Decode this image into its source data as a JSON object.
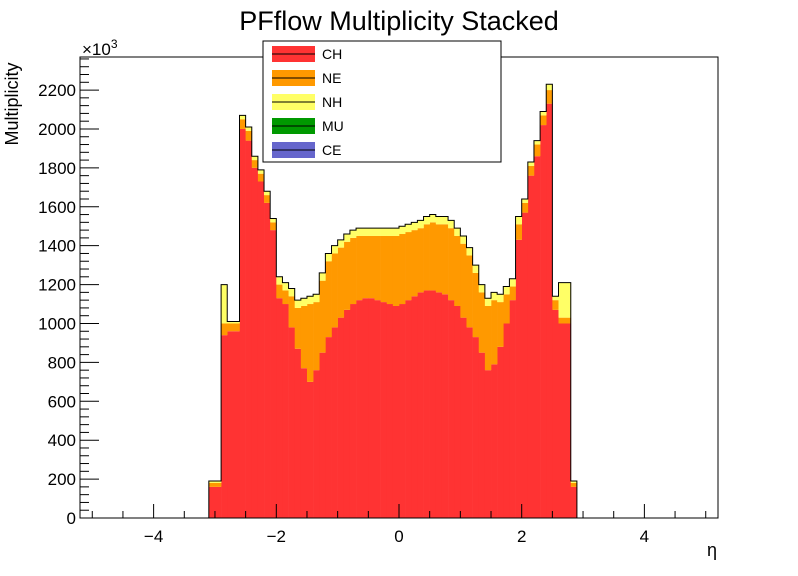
{
  "chart_data": {
    "type": "bar",
    "stacked": true,
    "title": "PFflow Multiplicity Stacked",
    "xlabel": "η",
    "ylabel": "Multiplicity",
    "y_exponent_label": "×10",
    "y_exponent_value": "3",
    "xlim": [
      -5.2,
      5.2
    ],
    "ylim": [
      0,
      2370
    ],
    "x_ticks": [
      {
        "value": -4,
        "label": "−4"
      },
      {
        "value": -2,
        "label": "−2"
      },
      {
        "value": 0,
        "label": "0"
      },
      {
        "value": 2,
        "label": "2"
      },
      {
        "value": 4,
        "label": "4"
      }
    ],
    "y_ticks": [
      {
        "value": 0,
        "label": "0"
      },
      {
        "value": 200,
        "label": "200"
      },
      {
        "value": 400,
        "label": "400"
      },
      {
        "value": 600,
        "label": "600"
      },
      {
        "value": 800,
        "label": "800"
      },
      {
        "value": 1000,
        "label": "1000"
      },
      {
        "value": 1200,
        "label": "1200"
      },
      {
        "value": 1400,
        "label": "1400"
      },
      {
        "value": 1600,
        "label": "1600"
      },
      {
        "value": 1800,
        "label": "1800"
      },
      {
        "value": 2000,
        "label": "2000"
      },
      {
        "value": 2200,
        "label": "2200"
      }
    ],
    "legend_position": "top-center",
    "bin_edges": [
      -3.1,
      -2.9,
      -2.8,
      -2.6,
      -2.5,
      -2.4,
      -2.3,
      -2.2,
      -2.1,
      -2.0,
      -1.9,
      -1.8,
      -1.7,
      -1.6,
      -1.5,
      -1.4,
      -1.3,
      -1.2,
      -1.1,
      -1.0,
      -0.9,
      -0.8,
      -0.7,
      -0.6,
      -0.5,
      -0.4,
      -0.3,
      -0.2,
      -0.1,
      0.0,
      0.1,
      0.2,
      0.3,
      0.4,
      0.5,
      0.6,
      0.7,
      0.8,
      0.9,
      1.0,
      1.1,
      1.2,
      1.3,
      1.4,
      1.5,
      1.6,
      1.7,
      1.8,
      1.9,
      2.0,
      2.1,
      2.2,
      2.3,
      2.4,
      2.5,
      2.6,
      2.8,
      2.9,
      3.1
    ],
    "series": [
      {
        "name": "CH",
        "color": "#ff3333",
        "values": [
          160,
          940,
          960,
          2000,
          1940,
          1800,
          1730,
          1620,
          1480,
          1130,
          1100,
          980,
          870,
          770,
          700,
          760,
          850,
          930,
          980,
          1030,
          1070,
          1100,
          1120,
          1130,
          1130,
          1120,
          1110,
          1100,
          1090,
          1100,
          1120,
          1140,
          1160,
          1170,
          1170,
          1160,
          1150,
          1120,
          1090,
          1030,
          980,
          930,
          850,
          760,
          790,
          880,
          1000,
          1120,
          1430,
          1570,
          1760,
          1860,
          2020,
          2130,
          1070,
          1000,
          160
        ]
      },
      {
        "name": "NE",
        "color": "#ff9900",
        "values": [
          20,
          60,
          40,
          50,
          50,
          40,
          40,
          40,
          40,
          70,
          70,
          160,
          210,
          320,
          400,
          350,
          370,
          390,
          380,
          360,
          350,
          340,
          330,
          320,
          320,
          330,
          340,
          350,
          360,
          360,
          350,
          340,
          330,
          340,
          350,
          350,
          360,
          370,
          360,
          380,
          370,
          330,
          310,
          330,
          330,
          230,
          150,
          70,
          80,
          50,
          50,
          60,
          50,
          70,
          50,
          30,
          20
        ]
      },
      {
        "name": "NH",
        "color": "#ffff66",
        "values": [
          10,
          200,
          10,
          20,
          20,
          20,
          20,
          20,
          20,
          40,
          40,
          40,
          40,
          40,
          40,
          40,
          40,
          40,
          40,
          40,
          40,
          40,
          40,
          40,
          40,
          40,
          40,
          40,
          40,
          40,
          40,
          40,
          40,
          40,
          40,
          40,
          40,
          40,
          40,
          40,
          40,
          40,
          40,
          40,
          40,
          40,
          40,
          40,
          40,
          20,
          20,
          20,
          20,
          30,
          20,
          180,
          10
        ]
      },
      {
        "name": "MU",
        "color": "#009900",
        "values": [
          0,
          0,
          0,
          0,
          0,
          0,
          0,
          0,
          0,
          0,
          0,
          0,
          0,
          0,
          0,
          0,
          0,
          0,
          0,
          0,
          0,
          0,
          0,
          0,
          0,
          0,
          0,
          0,
          0,
          0,
          0,
          0,
          0,
          0,
          0,
          0,
          0,
          0,
          0,
          0,
          0,
          0,
          0,
          0,
          0,
          0,
          0,
          0,
          0,
          0,
          0,
          0,
          0,
          0,
          0,
          0,
          0
        ]
      },
      {
        "name": "CE",
        "color": "#6666cc",
        "values": [
          0,
          0,
          0,
          0,
          0,
          0,
          0,
          0,
          0,
          0,
          0,
          0,
          0,
          0,
          0,
          0,
          0,
          0,
          0,
          0,
          0,
          0,
          0,
          0,
          0,
          0,
          0,
          0,
          0,
          0,
          0,
          0,
          0,
          0,
          0,
          0,
          0,
          0,
          0,
          0,
          0,
          0,
          0,
          0,
          0,
          0,
          0,
          0,
          0,
          0,
          0,
          0,
          0,
          0,
          0,
          0,
          0
        ]
      }
    ]
  }
}
